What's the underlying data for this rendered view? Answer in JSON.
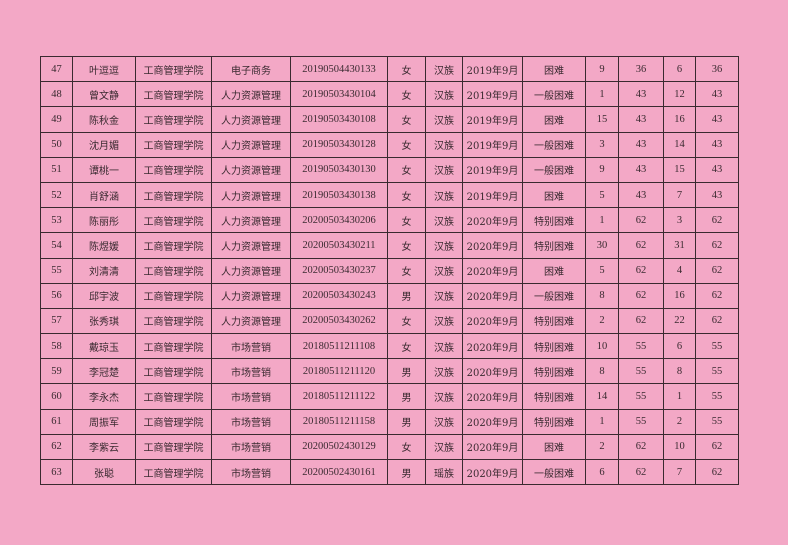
{
  "table": {
    "rows": [
      [
        "47",
        "叶逗逗",
        "工商管理学院",
        "电子商务",
        "20190504430133",
        "女",
        "汉族",
        "2019年9月",
        "困难",
        "9",
        "36",
        "6",
        "36"
      ],
      [
        "48",
        "曾文静",
        "工商管理学院",
        "人力资源管理",
        "20190503430104",
        "女",
        "汉族",
        "2019年9月",
        "一般困难",
        "1",
        "43",
        "12",
        "43"
      ],
      [
        "49",
        "陈秋金",
        "工商管理学院",
        "人力资源管理",
        "20190503430108",
        "女",
        "汉族",
        "2019年9月",
        "困难",
        "15",
        "43",
        "16",
        "43"
      ],
      [
        "50",
        "沈月媚",
        "工商管理学院",
        "人力资源管理",
        "20190503430128",
        "女",
        "汉族",
        "2019年9月",
        "一般困难",
        "3",
        "43",
        "14",
        "43"
      ],
      [
        "51",
        "谭桃一",
        "工商管理学院",
        "人力资源管理",
        "20190503430130",
        "女",
        "汉族",
        "2019年9月",
        "一般困难",
        "9",
        "43",
        "15",
        "43"
      ],
      [
        "52",
        "肖舒涵",
        "工商管理学院",
        "人力资源管理",
        "20190503430138",
        "女",
        "汉族",
        "2019年9月",
        "困难",
        "5",
        "43",
        "7",
        "43"
      ],
      [
        "53",
        "陈丽彤",
        "工商管理学院",
        "人力资源管理",
        "20200503430206",
        "女",
        "汉族",
        "2020年9月",
        "特别困难",
        "1",
        "62",
        "3",
        "62"
      ],
      [
        "54",
        "陈煜媛",
        "工商管理学院",
        "人力资源管理",
        "20200503430211",
        "女",
        "汉族",
        "2020年9月",
        "特别困难",
        "30",
        "62",
        "31",
        "62"
      ],
      [
        "55",
        "刘清清",
        "工商管理学院",
        "人力资源管理",
        "20200503430237",
        "女",
        "汉族",
        "2020年9月",
        "困难",
        "5",
        "62",
        "4",
        "62"
      ],
      [
        "56",
        "邱宇波",
        "工商管理学院",
        "人力资源管理",
        "20200503430243",
        "男",
        "汉族",
        "2020年9月",
        "一般困难",
        "8",
        "62",
        "16",
        "62"
      ],
      [
        "57",
        "张秀琪",
        "工商管理学院",
        "人力资源管理",
        "20200503430262",
        "女",
        "汉族",
        "2020年9月",
        "特别困难",
        "2",
        "62",
        "22",
        "62"
      ],
      [
        "58",
        "戴琼玉",
        "工商管理学院",
        "市场营销",
        "20180511211108",
        "女",
        "汉族",
        "2020年9月",
        "特别困难",
        "10",
        "55",
        "6",
        "55"
      ],
      [
        "59",
        "李冠楚",
        "工商管理学院",
        "市场营销",
        "20180511211120",
        "男",
        "汉族",
        "2020年9月",
        "特别困难",
        "8",
        "55",
        "8",
        "55"
      ],
      [
        "60",
        "李永杰",
        "工商管理学院",
        "市场营销",
        "20180511211122",
        "男",
        "汉族",
        "2020年9月",
        "特别困难",
        "14",
        "55",
        "1",
        "55"
      ],
      [
        "61",
        "周振军",
        "工商管理学院",
        "市场营销",
        "20180511211158",
        "男",
        "汉族",
        "2020年9月",
        "特别困难",
        "1",
        "55",
        "2",
        "55"
      ],
      [
        "62",
        "李紫云",
        "工商管理学院",
        "市场营销",
        "20200502430129",
        "女",
        "汉族",
        "2020年9月",
        "困难",
        "2",
        "62",
        "10",
        "62"
      ],
      [
        "63",
        "张聪",
        "工商管理学院",
        "市场营销",
        "20200502430161",
        "男",
        "瑶族",
        "2020年9月",
        "一般困难",
        "6",
        "62",
        "7",
        "62"
      ]
    ]
  },
  "colors": {
    "paper": "#f3a8c6",
    "ink": "#3a2a30"
  }
}
